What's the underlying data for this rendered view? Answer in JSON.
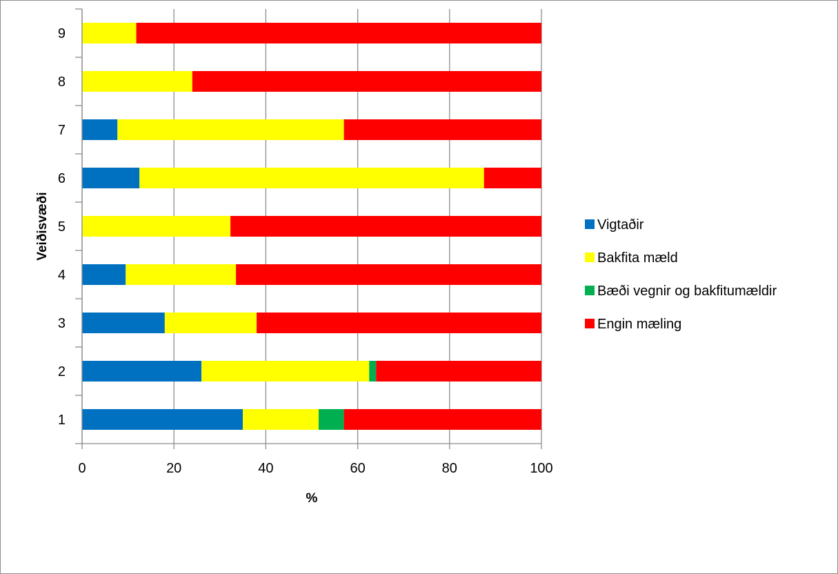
{
  "chart_data": {
    "type": "bar",
    "orientation": "horizontal",
    "stacked": true,
    "title": "",
    "xlabel": "%",
    "ylabel": "Veiðisvæði",
    "xlim": [
      0,
      100
    ],
    "x_ticks": [
      "0",
      "20",
      "40",
      "60",
      "80",
      "100"
    ],
    "grid": true,
    "legend_position": "right",
    "categories": [
      "1",
      "2",
      "3",
      "4",
      "5",
      "6",
      "7",
      "8",
      "9"
    ],
    "series": [
      {
        "name": "Vigtaðir",
        "color": "#0070C0",
        "values": [
          35,
          26,
          18,
          9.5,
          0,
          12.5,
          7.7,
          0,
          0
        ]
      },
      {
        "name": "Bakfita mæld",
        "color": "#FFFF00",
        "values": [
          16.5,
          36.5,
          20,
          24,
          32.3,
          75,
          49.3,
          24,
          11.8
        ]
      },
      {
        "name": "Bæði vegnir og bakfitumældir",
        "color": "#00B050",
        "values": [
          5.5,
          1.5,
          0,
          0,
          0,
          0,
          0,
          0,
          0
        ]
      },
      {
        "name": "Engin mæling",
        "color": "#FF0000",
        "values": [
          43,
          36,
          62,
          66.5,
          67.7,
          12.5,
          43,
          76,
          88.2
        ]
      }
    ]
  }
}
